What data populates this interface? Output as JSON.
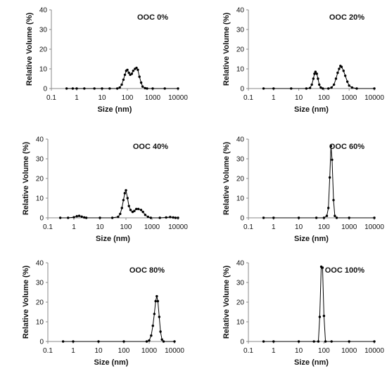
{
  "chart_data": [
    {
      "type": "line",
      "title": "OOC 0%",
      "xlabel": "Size (nm)",
      "ylabel": "Relative Volume (%)",
      "x_scale": "log",
      "xlim": [
        0.1,
        10000
      ],
      "ylim": [
        0,
        40
      ],
      "x_ticks": [
        "0.1",
        "1",
        "10",
        "100",
        "1000",
        "10000"
      ],
      "y_ticks": [
        "0",
        "10",
        "20",
        "30",
        "40"
      ],
      "grid": false,
      "series": [
        {
          "values": [
            [
              0.4,
              0
            ],
            [
              0.7,
              0
            ],
            [
              1,
              0
            ],
            [
              2,
              0
            ],
            [
              5,
              0
            ],
            [
              10,
              0
            ],
            [
              20,
              0
            ],
            [
              40,
              0
            ],
            [
              50,
              0.5
            ],
            [
              60,
              2
            ],
            [
              70,
              4.5
            ],
            [
              80,
              7
            ],
            [
              90,
              9
            ],
            [
              100,
              9.5
            ],
            [
              115,
              8
            ],
            [
              130,
              7
            ],
            [
              150,
              7.5
            ],
            [
              170,
              9
            ],
            [
              200,
              10
            ],
            [
              230,
              10.5
            ],
            [
              260,
              9.5
            ],
            [
              300,
              6
            ],
            [
              350,
              3
            ],
            [
              400,
              1
            ],
            [
              500,
              0.2
            ],
            [
              600,
              0
            ],
            [
              1000,
              0
            ],
            [
              3000,
              0
            ],
            [
              10000,
              0
            ]
          ]
        }
      ]
    },
    {
      "type": "line",
      "title": "OOC 20%",
      "xlabel": "Size (nm)",
      "ylabel": "Relative Volume (%)",
      "x_scale": "log",
      "xlim": [
        0.1,
        10000
      ],
      "ylim": [
        0,
        40
      ],
      "x_ticks": [
        "0.1",
        "1",
        "10",
        "100",
        "1000",
        "10000"
      ],
      "y_ticks": [
        "0",
        "10",
        "20",
        "30",
        "40"
      ],
      "grid": false,
      "series": [
        {
          "values": [
            [
              0.4,
              0
            ],
            [
              1,
              0
            ],
            [
              5,
              0
            ],
            [
              20,
              0
            ],
            [
              28,
              0.3
            ],
            [
              33,
              2
            ],
            [
              38,
              5
            ],
            [
              42,
              7.5
            ],
            [
              46,
              8.5
            ],
            [
              52,
              7.5
            ],
            [
              58,
              5
            ],
            [
              65,
              2
            ],
            [
              75,
              0.5
            ],
            [
              90,
              0
            ],
            [
              150,
              0
            ],
            [
              200,
              0.5
            ],
            [
              250,
              2
            ],
            [
              300,
              5
            ],
            [
              350,
              8
            ],
            [
              400,
              10
            ],
            [
              450,
              11.5
            ],
            [
              500,
              11
            ],
            [
              600,
              9
            ],
            [
              700,
              6.5
            ],
            [
              850,
              3.5
            ],
            [
              1000,
              1.5
            ],
            [
              1300,
              0.5
            ],
            [
              2000,
              0
            ],
            [
              10000,
              0
            ]
          ]
        }
      ]
    },
    {
      "type": "line",
      "title": "OOC 40%",
      "xlabel": "Size (nm)",
      "ylabel": "Relative Volume (%)",
      "x_scale": "log",
      "xlim": [
        0.1,
        10000
      ],
      "ylim": [
        0,
        40
      ],
      "x_ticks": [
        "0.1",
        "1",
        "10",
        "100",
        "1000",
        "10000"
      ],
      "y_ticks": [
        "0",
        "10",
        "20",
        "30",
        "40"
      ],
      "grid": false,
      "series": [
        {
          "values": [
            [
              0.3,
              0
            ],
            [
              0.6,
              0
            ],
            [
              1,
              0.3
            ],
            [
              1.3,
              0.8
            ],
            [
              1.6,
              1
            ],
            [
              2,
              0.6
            ],
            [
              2.5,
              0.2
            ],
            [
              3,
              0
            ],
            [
              10,
              0
            ],
            [
              30,
              0
            ],
            [
              50,
              0.5
            ],
            [
              60,
              2
            ],
            [
              70,
              5
            ],
            [
              80,
              9
            ],
            [
              90,
              12.5
            ],
            [
              100,
              14
            ],
            [
              115,
              10
            ],
            [
              130,
              6
            ],
            [
              150,
              4
            ],
            [
              180,
              3
            ],
            [
              210,
              3.5
            ],
            [
              250,
              4.5
            ],
            [
              300,
              4.5
            ],
            [
              380,
              4
            ],
            [
              450,
              3
            ],
            [
              550,
              1.5
            ],
            [
              700,
              0.5
            ],
            [
              900,
              0
            ],
            [
              2000,
              0
            ],
            [
              3500,
              0.2
            ],
            [
              5000,
              0.4
            ],
            [
              6500,
              0.2
            ],
            [
              8000,
              0
            ],
            [
              10000,
              0
            ]
          ]
        }
      ]
    },
    {
      "type": "line",
      "title": "OOC 60%",
      "xlabel": "Size (nm)",
      "ylabel": "Relative Volume (%)",
      "x_scale": "log",
      "xlim": [
        0.1,
        10000
      ],
      "ylim": [
        0,
        40
      ],
      "x_ticks": [
        "0.1",
        "1",
        "10",
        "100",
        "1000",
        "10000"
      ],
      "y_ticks": [
        "0",
        "10",
        "20",
        "30",
        "40"
      ],
      "grid": false,
      "series": [
        {
          "values": [
            [
              0.4,
              0
            ],
            [
              1,
              0
            ],
            [
              10,
              0
            ],
            [
              50,
              0
            ],
            [
              100,
              0
            ],
            [
              130,
              1
            ],
            [
              150,
              5
            ],
            [
              170,
              20.5
            ],
            [
              190,
              36.5
            ],
            [
              210,
              29.5
            ],
            [
              240,
              9
            ],
            [
              270,
              1
            ],
            [
              320,
              0
            ],
            [
              1000,
              0
            ],
            [
              10000,
              0
            ]
          ]
        }
      ]
    },
    {
      "type": "line",
      "title": "OOC 80%",
      "xlabel": "Size (nm)",
      "ylabel": "Relative Volume (%)",
      "x_scale": "log",
      "xlim": [
        0.1,
        10000
      ],
      "ylim": [
        0,
        40
      ],
      "x_ticks": [
        "0.1",
        "1",
        "10",
        "100",
        "1000",
        "10000"
      ],
      "y_ticks": [
        "0",
        "10",
        "20",
        "30",
        "40"
      ],
      "grid": false,
      "series": [
        {
          "values": [
            [
              0.4,
              0
            ],
            [
              1,
              0
            ],
            [
              10,
              0
            ],
            [
              100,
              0
            ],
            [
              800,
              0
            ],
            [
              1000,
              0.5
            ],
            [
              1200,
              3
            ],
            [
              1400,
              8
            ],
            [
              1600,
              14
            ],
            [
              1800,
              20.5
            ],
            [
              2000,
              23
            ],
            [
              2200,
              20.5
            ],
            [
              2500,
              12.5
            ],
            [
              2800,
              5
            ],
            [
              3200,
              1
            ],
            [
              3700,
              0
            ],
            [
              10000,
              0
            ]
          ]
        }
      ]
    },
    {
      "type": "line",
      "title": "OOC 100%",
      "xlabel": "Size (nm)",
      "ylabel": "Relative Volume (%)",
      "x_scale": "log",
      "xlim": [
        0.1,
        10000
      ],
      "ylim": [
        0,
        40
      ],
      "x_ticks": [
        "0.1",
        "1",
        "10",
        "100",
        "1000",
        "10000"
      ],
      "y_ticks": [
        "0",
        "10",
        "20",
        "30",
        "40"
      ],
      "grid": false,
      "series": [
        {
          "values": [
            [
              0.4,
              0
            ],
            [
              1,
              0
            ],
            [
              10,
              0
            ],
            [
              40,
              0
            ],
            [
              60,
              0
            ],
            [
              68,
              12.5
            ],
            [
              78,
              38
            ],
            [
              88,
              37.5
            ],
            [
              100,
              13
            ],
            [
              115,
              0
            ],
            [
              200,
              0
            ],
            [
              1000,
              0
            ],
            [
              10000,
              0
            ]
          ]
        }
      ]
    }
  ]
}
